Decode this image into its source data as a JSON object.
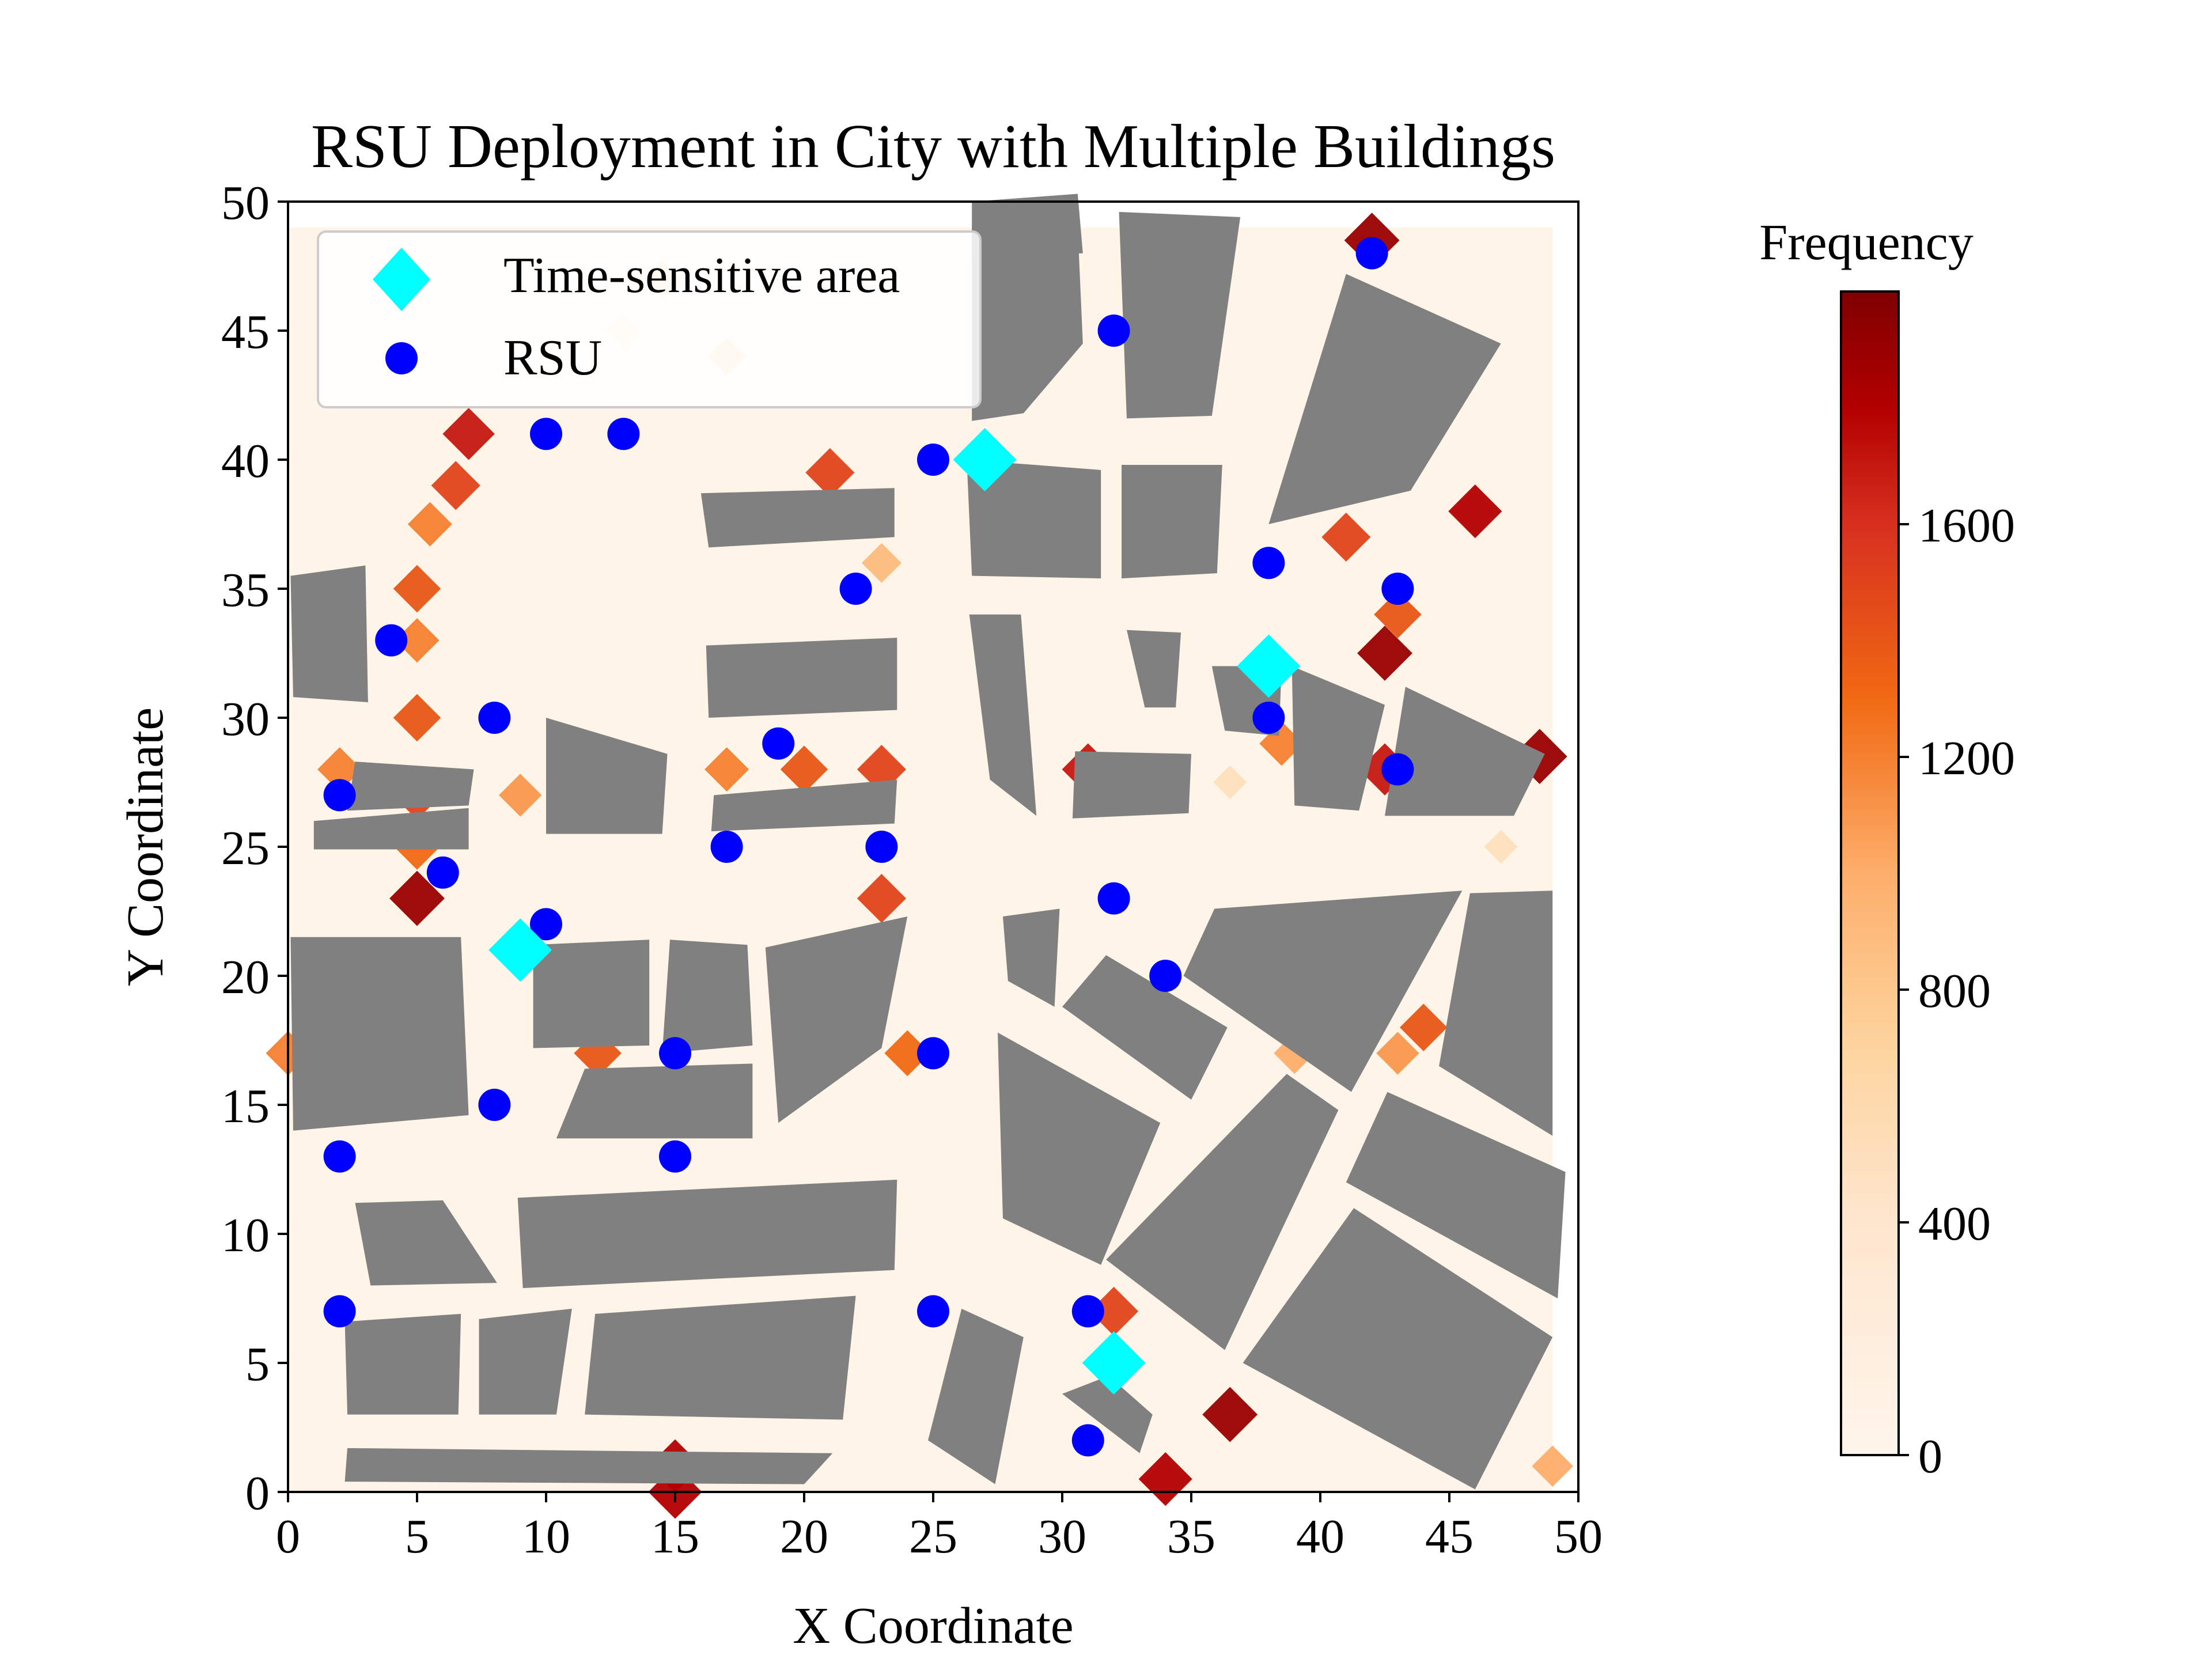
{
  "figure": {
    "title": "RSU Deployment in City with Multiple Buildings",
    "xlabel": "X Coordinate",
    "ylabel": "Y Coordinate",
    "colorbar_label": "Frequency"
  },
  "legend": {
    "items": [
      {
        "label": "Time-sensitive area",
        "marker": "diamond",
        "color": "#00ffff"
      },
      {
        "label": "RSU",
        "marker": "circle",
        "color": "#0000ff"
      }
    ]
  },
  "colors": {
    "building": "#808080",
    "rsu": "#0000ff",
    "time_sensitive": "#00ffff",
    "colormap": [
      "#fff5eb",
      "#fdd49e",
      "#fc8d59",
      "#d7301f",
      "#7f0000"
    ]
  },
  "chart_data": {
    "type": "scatter",
    "xlim": [
      0,
      50
    ],
    "ylim": [
      0,
      50
    ],
    "xticks": [
      0,
      5,
      10,
      15,
      20,
      25,
      30,
      35,
      40,
      45,
      50
    ],
    "yticks": [
      0,
      5,
      10,
      15,
      20,
      25,
      30,
      35,
      40,
      45,
      50
    ],
    "colorbar": {
      "range": [
        0,
        2000
      ],
      "ticks": [
        0,
        400,
        800,
        1200,
        1600
      ]
    },
    "legend_position": "upper-left",
    "series": [
      {
        "name": "Time-sensitive area",
        "points": [
          [
            27,
            40
          ],
          [
            38,
            32
          ],
          [
            9,
            21
          ],
          [
            32,
            5
          ]
        ]
      },
      {
        "name": "RSU",
        "points": [
          [
            42,
            48
          ],
          [
            32,
            45
          ],
          [
            10,
            41
          ],
          [
            13,
            41
          ],
          [
            25,
            40
          ],
          [
            38,
            36
          ],
          [
            43,
            35
          ],
          [
            22,
            35
          ],
          [
            4,
            33
          ],
          [
            8,
            30
          ],
          [
            19,
            29
          ],
          [
            38,
            30
          ],
          [
            43,
            28
          ],
          [
            2,
            27
          ],
          [
            17,
            25
          ],
          [
            23,
            25
          ],
          [
            6,
            24
          ],
          [
            32,
            23
          ],
          [
            10,
            22
          ],
          [
            34,
            20
          ],
          [
            15,
            17
          ],
          [
            25,
            17
          ],
          [
            8,
            15
          ],
          [
            2,
            13
          ],
          [
            15,
            13
          ],
          [
            2,
            7
          ],
          [
            25,
            7
          ],
          [
            31,
            7
          ],
          [
            31,
            2
          ]
        ]
      }
    ],
    "buildings": [
      [
        [
          26.5,
          47.8
        ],
        [
          30.8,
          48.0
        ],
        [
          30.6,
          50.3
        ],
        [
          26.5,
          50.0
        ]
      ],
      [
        [
          26.5,
          41.5
        ],
        [
          28.5,
          41.8
        ],
        [
          30.8,
          44.5
        ],
        [
          30.6,
          49.0
        ],
        [
          26.5,
          49.0
        ]
      ],
      [
        [
          32.5,
          41.6
        ],
        [
          35.8,
          41.7
        ],
        [
          36.9,
          49.4
        ],
        [
          32.2,
          49.6
        ]
      ],
      [
        [
          38.0,
          37.5
        ],
        [
          43.5,
          38.8
        ],
        [
          47.0,
          44.5
        ],
        [
          41.0,
          47.2
        ]
      ],
      [
        [
          26.5,
          35.5
        ],
        [
          31.5,
          35.4
        ],
        [
          31.5,
          39.6
        ],
        [
          26.3,
          40.0
        ]
      ],
      [
        [
          32.3,
          35.4
        ],
        [
          36.0,
          35.6
        ],
        [
          36.2,
          39.8
        ],
        [
          32.3,
          39.8
        ]
      ],
      [
        [
          16.3,
          36.6
        ],
        [
          23.5,
          37.0
        ],
        [
          23.5,
          38.9
        ],
        [
          16.0,
          38.7
        ]
      ],
      [
        [
          16.3,
          30.0
        ],
        [
          23.6,
          30.3
        ],
        [
          23.6,
          33.1
        ],
        [
          16.2,
          32.8
        ]
      ],
      [
        [
          16.4,
          25.6
        ],
        [
          23.5,
          25.9
        ],
        [
          23.6,
          27.6
        ],
        [
          16.5,
          27.0
        ]
      ],
      [
        [
          0.2,
          30.8
        ],
        [
          3.1,
          30.6
        ],
        [
          3.0,
          35.9
        ],
        [
          0.1,
          35.5
        ]
      ],
      [
        [
          2.3,
          26.4
        ],
        [
          7.0,
          26.6
        ],
        [
          7.2,
          28.0
        ],
        [
          2.6,
          28.3
        ]
      ],
      [
        [
          1.0,
          24.9
        ],
        [
          7.0,
          24.9
        ],
        [
          7.0,
          26.5
        ],
        [
          1.0,
          26.0
        ]
      ],
      [
        [
          10.0,
          25.5
        ],
        [
          14.5,
          25.5
        ],
        [
          14.7,
          28.6
        ],
        [
          10.0,
          30.0
        ]
      ],
      [
        [
          26.4,
          34.0
        ],
        [
          28.4,
          34.0
        ],
        [
          29.0,
          26.2
        ],
        [
          27.2,
          27.6
        ]
      ],
      [
        [
          32.5,
          33.4
        ],
        [
          34.6,
          33.3
        ],
        [
          34.4,
          30.4
        ],
        [
          33.2,
          30.4
        ]
      ],
      [
        [
          35.8,
          32.0
        ],
        [
          38.5,
          32.0
        ],
        [
          38.4,
          29.3
        ],
        [
          36.3,
          29.5
        ]
      ],
      [
        [
          38.9,
          32.0
        ],
        [
          42.5,
          30.5
        ],
        [
          41.5,
          26.4
        ],
        [
          39.0,
          26.6
        ]
      ],
      [
        [
          43.3,
          31.2
        ],
        [
          48.7,
          28.6
        ],
        [
          47.5,
          26.2
        ],
        [
          42.5,
          26.2
        ]
      ],
      [
        [
          30.5,
          28.7
        ],
        [
          35.0,
          28.6
        ],
        [
          34.9,
          26.3
        ],
        [
          30.4,
          26.1
        ]
      ],
      [
        [
          0.1,
          21.5
        ],
        [
          6.7,
          21.5
        ],
        [
          7.0,
          14.6
        ],
        [
          0.2,
          14.0
        ]
      ],
      [
        [
          9.5,
          21.2
        ],
        [
          14.0,
          21.4
        ],
        [
          14.0,
          17.3
        ],
        [
          9.5,
          17.2
        ]
      ],
      [
        [
          14.8,
          21.4
        ],
        [
          17.8,
          21.2
        ],
        [
          18.0,
          17.3
        ],
        [
          14.5,
          17.0
        ]
      ],
      [
        [
          18.5,
          21.1
        ],
        [
          24.0,
          22.3
        ],
        [
          23.0,
          17.2
        ],
        [
          19.0,
          14.3
        ]
      ],
      [
        [
          11.5,
          16.4
        ],
        [
          18.0,
          16.6
        ],
        [
          18.0,
          13.7
        ],
        [
          10.4,
          13.7
        ]
      ],
      [
        [
          27.7,
          22.3
        ],
        [
          29.9,
          22.6
        ],
        [
          29.7,
          18.8
        ],
        [
          27.9,
          19.8
        ]
      ],
      [
        [
          31.7,
          20.8
        ],
        [
          36.4,
          18.0
        ],
        [
          35.0,
          15.2
        ],
        [
          30.0,
          18.8
        ]
      ],
      [
        [
          35.9,
          22.6
        ],
        [
          45.5,
          23.3
        ],
        [
          41.2,
          15.5
        ],
        [
          34.7,
          20.0
        ]
      ],
      [
        [
          45.8,
          23.2
        ],
        [
          49.0,
          23.3
        ],
        [
          49.0,
          13.8
        ],
        [
          44.6,
          16.5
        ]
      ],
      [
        [
          27.5,
          17.8
        ],
        [
          33.8,
          14.3
        ],
        [
          31.5,
          8.8
        ],
        [
          27.7,
          10.6
        ]
      ],
      [
        [
          38.7,
          16.2
        ],
        [
          40.7,
          14.8
        ],
        [
          36.3,
          5.5
        ],
        [
          31.7,
          9.0
        ]
      ],
      [
        [
          42.6,
          15.5
        ],
        [
          49.5,
          12.4
        ],
        [
          49.2,
          7.5
        ],
        [
          41.0,
          12.0
        ]
      ],
      [
        [
          2.6,
          11.2
        ],
        [
          6.0,
          11.3
        ],
        [
          8.1,
          8.1
        ],
        [
          3.2,
          8.0
        ]
      ],
      [
        [
          8.9,
          11.4
        ],
        [
          23.6,
          12.1
        ],
        [
          23.5,
          8.6
        ],
        [
          9.1,
          7.9
        ]
      ],
      [
        [
          2.2,
          6.6
        ],
        [
          6.7,
          6.9
        ],
        [
          6.6,
          3.0
        ],
        [
          2.3,
          3.0
        ]
      ],
      [
        [
          7.4,
          6.7
        ],
        [
          11.0,
          7.1
        ],
        [
          10.4,
          3.0
        ],
        [
          7.4,
          3.0
        ]
      ],
      [
        [
          11.9,
          6.9
        ],
        [
          22.0,
          7.6
        ],
        [
          21.5,
          2.8
        ],
        [
          11.5,
          3.0
        ]
      ],
      [
        [
          2.3,
          1.7
        ],
        [
          21.1,
          1.5
        ],
        [
          20.0,
          0.3
        ],
        [
          2.2,
          0.4
        ]
      ],
      [
        [
          26.1,
          7.1
        ],
        [
          28.5,
          6.0
        ],
        [
          27.4,
          0.3
        ],
        [
          24.8,
          2.0
        ]
      ],
      [
        [
          31.8,
          4.5
        ],
        [
          33.5,
          3.0
        ],
        [
          33.0,
          1.5
        ],
        [
          30.0,
          3.8
        ]
      ],
      [
        [
          41.3,
          11.0
        ],
        [
          49.0,
          6.0
        ],
        [
          46.0,
          0.1
        ],
        [
          37.0,
          5.0
        ]
      ]
    ],
    "heatmap_hotspots": [
      {
        "x": 42,
        "y": 48.5,
        "v": 1900
      },
      {
        "x": 43,
        "y": 34,
        "v": 1400
      },
      {
        "x": 42.5,
        "y": 32.5,
        "v": 1900
      },
      {
        "x": 41,
        "y": 37,
        "v": 1500
      },
      {
        "x": 46,
        "y": 38,
        "v": 1800
      },
      {
        "x": 48.5,
        "y": 28.5,
        "v": 1900
      },
      {
        "x": 42.5,
        "y": 28,
        "v": 1700
      },
      {
        "x": 38.5,
        "y": 29,
        "v": 1200
      },
      {
        "x": 31,
        "y": 28,
        "v": 1700
      },
      {
        "x": 7,
        "y": 41,
        "v": 1700
      },
      {
        "x": 6.5,
        "y": 39,
        "v": 1500
      },
      {
        "x": 5.5,
        "y": 37.5,
        "v": 1200
      },
      {
        "x": 5,
        "y": 35,
        "v": 1400
      },
      {
        "x": 5,
        "y": 33,
        "v": 1200
      },
      {
        "x": 5,
        "y": 30,
        "v": 1400
      },
      {
        "x": 5,
        "y": 27,
        "v": 1500
      },
      {
        "x": 5,
        "y": 25,
        "v": 1300
      },
      {
        "x": 5,
        "y": 23,
        "v": 1900
      },
      {
        "x": 2,
        "y": 28,
        "v": 1200
      },
      {
        "x": 9,
        "y": 27,
        "v": 1100
      },
      {
        "x": 21,
        "y": 39.5,
        "v": 1500
      },
      {
        "x": 23,
        "y": 36,
        "v": 900
      },
      {
        "x": 23,
        "y": 28,
        "v": 1500
      },
      {
        "x": 20,
        "y": 28,
        "v": 1400
      },
      {
        "x": 17,
        "y": 28,
        "v": 1200
      },
      {
        "x": 23,
        "y": 23,
        "v": 1500
      },
      {
        "x": 12,
        "y": 17,
        "v": 1400
      },
      {
        "x": 24,
        "y": 17,
        "v": 1300
      },
      {
        "x": 15,
        "y": 1,
        "v": 1800
      },
      {
        "x": 15,
        "y": 0,
        "v": 1800
      },
      {
        "x": 34,
        "y": 0.5,
        "v": 1800
      },
      {
        "x": 36.5,
        "y": 3,
        "v": 1900
      },
      {
        "x": 32,
        "y": 7,
        "v": 1500
      },
      {
        "x": 44,
        "y": 18,
        "v": 1400
      },
      {
        "x": 43,
        "y": 17,
        "v": 1100
      },
      {
        "x": 0,
        "y": 17,
        "v": 1200
      },
      {
        "x": 49,
        "y": 1,
        "v": 1000
      },
      {
        "x": 14.5,
        "y": 47,
        "v": 700
      },
      {
        "x": 17,
        "y": 44,
        "v": 700
      },
      {
        "x": 13,
        "y": 45,
        "v": 500
      },
      {
        "x": 39,
        "y": 17,
        "v": 1000
      },
      {
        "x": 28,
        "y": 44,
        "v": 900
      },
      {
        "x": 47,
        "y": 25,
        "v": 500
      },
      {
        "x": 36.5,
        "y": 27.5,
        "v": 500
      }
    ]
  }
}
